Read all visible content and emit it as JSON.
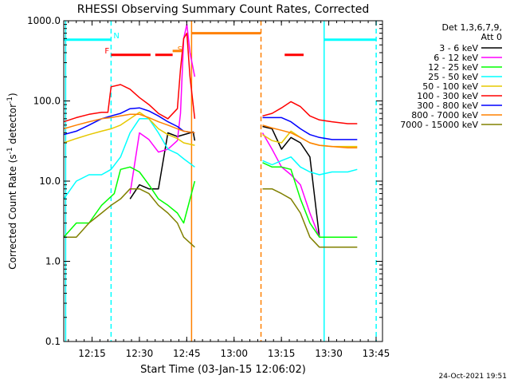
{
  "chart_data": {
    "type": "line",
    "title": "RHESSI Observing Summary Count Rates, Corrected",
    "xlabel": "Start Time (03-Jan-15 12:06:02)",
    "ylabel": "Corrected Count Rate (s",
    "ylabel_sup": "-1",
    "ylabel_tail": " detector",
    "ylabel_tail_sup": "-1",
    "ylabel_close": ")",
    "yscale": "log",
    "ylim": [
      0.1,
      1000
    ],
    "xlim_minutes": [
      0,
      101
    ],
    "x_ticks": [
      {
        "label": "12:15",
        "m": 8.97
      },
      {
        "label": "12:30",
        "m": 23.97
      },
      {
        "label": "12:45",
        "m": 38.97
      },
      {
        "label": "13:00",
        "m": 53.97
      },
      {
        "label": "13:15",
        "m": 68.97
      },
      {
        "label": "13:30",
        "m": 83.97
      },
      {
        "label": "13:45",
        "m": 98.97
      }
    ],
    "y_ticks": [
      {
        "label": "0.1",
        "v": 0.1
      },
      {
        "label": "1.0",
        "v": 1
      },
      {
        "label": "10.0",
        "v": 10
      },
      {
        "label": "100.0",
        "v": 100
      },
      {
        "label": "1000.0",
        "v": 1000
      }
    ],
    "legend_header": [
      "Det 1,3,6,7,9,",
      "Att 0"
    ],
    "legend_position": "right",
    "series": [
      {
        "name": "3 - 6 keV",
        "color": "#000000",
        "x": [
          21,
          24,
          27,
          30,
          33,
          36,
          41,
          41.5,
          48,
          54,
          60,
          63,
          66,
          69,
          72,
          75,
          78,
          81
        ],
        "y": [
          6,
          9,
          8,
          8,
          40,
          36,
          41,
          32,
          null,
          null,
          null,
          48,
          45,
          25,
          35,
          30,
          20,
          2
        ]
      },
      {
        "name": "6 - 12 keV",
        "color": "#ff00ff",
        "x": [
          21,
          24,
          27,
          30,
          33,
          36,
          37,
          38,
          39,
          40,
          41.5,
          48,
          54,
          60,
          63,
          66,
          69,
          72,
          75,
          78,
          81
        ],
        "y": [
          7,
          40,
          33,
          23,
          25,
          32,
          70,
          600,
          900,
          400,
          200,
          null,
          null,
          null,
          40,
          25,
          15,
          12,
          9,
          4,
          2
        ]
      },
      {
        "name": "12 - 25 keV",
        "color": "#00ff00",
        "x": [
          0,
          4,
          8,
          12,
          16,
          18,
          21,
          24,
          27,
          30,
          33,
          36,
          38,
          41.5,
          48,
          54,
          60,
          63,
          66,
          69,
          72,
          75,
          78,
          81,
          85,
          90,
          93
        ],
        "y": [
          2,
          3,
          3,
          5,
          7,
          14,
          15,
          13,
          9,
          6,
          5,
          4,
          3,
          10,
          null,
          null,
          null,
          17,
          15,
          15,
          14,
          6,
          3,
          2,
          2,
          2,
          2
        ]
      },
      {
        "name": "25 - 50 keV",
        "color": "#00ffff",
        "x": [
          0,
          4,
          8,
          12,
          15,
          18,
          21,
          24,
          27,
          30,
          33,
          36,
          38,
          41.5,
          48,
          54,
          60,
          63,
          66,
          69,
          72,
          75,
          78,
          81,
          85,
          90,
          93
        ],
        "y": [
          6,
          10,
          12,
          12,
          14,
          20,
          40,
          60,
          60,
          40,
          25,
          22,
          19,
          15,
          null,
          null,
          null,
          18,
          16,
          18,
          20,
          15,
          13,
          12,
          13,
          13,
          14
        ]
      },
      {
        "name": "50 - 100 keV",
        "color": "#e6c800",
        "x": [
          0,
          4,
          8,
          12,
          15,
          18,
          21,
          24,
          27,
          30,
          33,
          36,
          38,
          41.5,
          48,
          54,
          60,
          63,
          66,
          69,
          72,
          75,
          78,
          81,
          85,
          90,
          93
        ],
        "y": [
          30,
          34,
          38,
          42,
          45,
          50,
          60,
          72,
          60,
          45,
          38,
          34,
          30,
          28,
          null,
          null,
          null,
          38,
          32,
          30,
          42,
          35,
          30,
          28,
          27,
          27,
          27
        ]
      },
      {
        "name": "100 - 300 keV",
        "color": "#ff0000",
        "x": [
          0,
          4,
          8,
          12,
          14,
          15,
          18,
          21,
          24,
          27,
          30,
          33,
          36,
          37,
          38,
          39,
          40,
          41.5,
          48,
          54,
          60,
          63,
          66,
          69,
          72,
          75,
          78,
          81,
          85,
          90,
          93
        ],
        "y": [
          55,
          62,
          68,
          72,
          72,
          150,
          160,
          140,
          110,
          90,
          70,
          60,
          80,
          250,
          600,
          700,
          200,
          60,
          null,
          null,
          null,
          65,
          70,
          82,
          98,
          85,
          65,
          58,
          55,
          52,
          52
        ]
      },
      {
        "name": "300 - 800 keV",
        "color": "#0000ff",
        "x": [
          0,
          4,
          8,
          12,
          15,
          18,
          21,
          24,
          27,
          30,
          33,
          36,
          38,
          41.5,
          48,
          54,
          60,
          63,
          66,
          69,
          72,
          75,
          78,
          81,
          85,
          90,
          93
        ],
        "y": [
          38,
          42,
          50,
          60,
          65,
          70,
          80,
          82,
          75,
          65,
          55,
          48,
          42,
          40,
          null,
          null,
          null,
          62,
          62,
          62,
          55,
          45,
          38,
          35,
          33,
          33,
          33
        ]
      },
      {
        "name": "800 - 7000 keV",
        "color": "#ff8000",
        "x": [
          0,
          4,
          8,
          12,
          15,
          18,
          21,
          24,
          27,
          30,
          33,
          36,
          38,
          41.5,
          48,
          54,
          60,
          63,
          66,
          69,
          72,
          75,
          78,
          81,
          85,
          90,
          93
        ],
        "y": [
          45,
          50,
          55,
          60,
          62,
          65,
          68,
          68,
          62,
          55,
          50,
          45,
          42,
          40,
          null,
          null,
          null,
          50,
          46,
          43,
          40,
          35,
          30,
          28,
          27,
          26,
          26
        ]
      },
      {
        "name": "7000 - 15000 keV",
        "color": "#808000",
        "x": [
          0,
          4,
          8,
          12,
          15,
          18,
          21,
          24,
          27,
          30,
          33,
          36,
          38,
          41.5,
          48,
          54,
          60,
          63,
          66,
          69,
          72,
          75,
          78,
          81,
          85,
          90,
          93
        ],
        "y": [
          2,
          2,
          3,
          4,
          5,
          6,
          8,
          8,
          7,
          5,
          4,
          3,
          2,
          1.5,
          null,
          null,
          null,
          8,
          8,
          7,
          6,
          4,
          2,
          1.5,
          1.5,
          1.5,
          1.5
        ]
      }
    ],
    "status_bars": [
      {
        "label": "N",
        "color": "#00ffff",
        "x0": 0,
        "x1": 15.0,
        "y": 580
      },
      {
        "label": "F",
        "color": "#ff0000",
        "x0": 15.0,
        "x1": 27.5,
        "y": 375
      },
      {
        "label": "",
        "color": "#ff0000",
        "x0": 29.0,
        "x1": 34.5,
        "y": 375
      },
      {
        "label": "S",
        "color": "#ff8000",
        "x0": 34.5,
        "x1": 37.5,
        "y": 420
      },
      {
        "label": "",
        "color": "#ff8000",
        "x0": 40.5,
        "x1": 62.5,
        "y": 700
      },
      {
        "label": "",
        "color": "#ff0000",
        "x0": 70.0,
        "x1": 76.0,
        "y": 375
      },
      {
        "label": "",
        "color": "#00ffff",
        "x0": 82.5,
        "x1": 99.0,
        "y": 580
      }
    ],
    "vertical_lines": [
      {
        "m": 0.6,
        "color": "#00ffff",
        "dashed": false
      },
      {
        "m": 15.0,
        "color": "#00ffff",
        "dashed": true
      },
      {
        "m": 40.5,
        "color": "#ff8000",
        "dashed": false
      },
      {
        "m": 62.5,
        "color": "#ff8000",
        "dashed": true
      },
      {
        "m": 82.5,
        "color": "#00ffff",
        "dashed": false
      },
      {
        "m": 99.0,
        "color": "#00ffff",
        "dashed": true
      }
    ],
    "footer_date": "24-Oct-2021 19:51"
  }
}
